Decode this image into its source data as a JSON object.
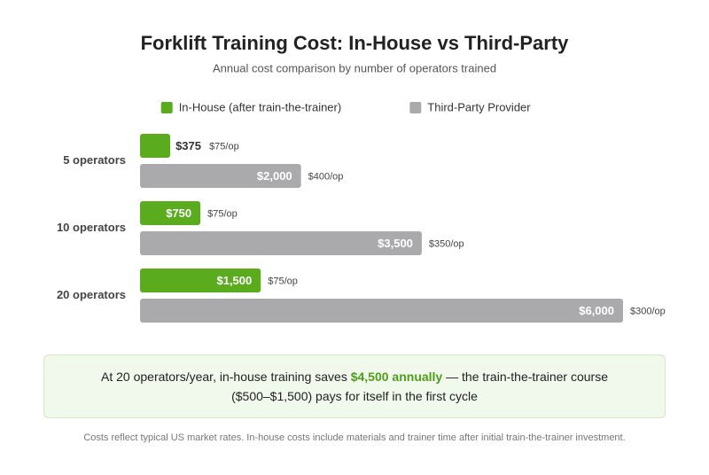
{
  "chart_data": {
    "type": "bar",
    "orientation": "horizontal",
    "title": "Forklift Training Cost: In-House vs Third-Party",
    "subtitle": "Annual cost comparison by number of operators trained",
    "categories": [
      "5 operators",
      "10 operators",
      "20 operators"
    ],
    "series": [
      {
        "name": "In-House (after train-the-trainer)",
        "color": "#5aab1e",
        "values": [
          375,
          750,
          1500
        ],
        "value_labels": [
          "$375",
          "$750",
          "$1,500"
        ],
        "annotations": [
          "$75/op",
          "$75/op",
          "$75/op"
        ]
      },
      {
        "name": "Third-Party Provider",
        "color": "#aaaaad",
        "values": [
          2000,
          3500,
          6000
        ],
        "value_labels": [
          "$2,000",
          "$3,500",
          "$6,000"
        ],
        "annotations": [
          "$400/op",
          "$350/op",
          "$300/op"
        ]
      }
    ],
    "xlim": [
      0,
      6000
    ],
    "legend": "top",
    "callout": {
      "before": "At 20 operators/year, in-house training saves ",
      "highlight": "$4,500 annually",
      "after": " — the train-the-trainer course ($500–$1,500) pays for itself in the first cycle"
    },
    "footnote": "Costs reflect typical US market rates. In-house costs include materials and trainer time after initial train-the-trainer investment."
  }
}
